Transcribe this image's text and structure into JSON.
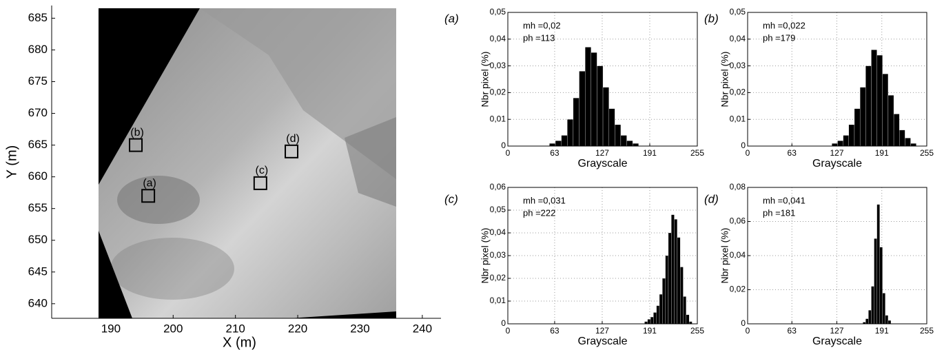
{
  "chart_data": [
    {
      "type": "image-map",
      "xlabel": "X (m)",
      "ylabel": "Y (m)",
      "xlim": [
        180.5,
        243
      ],
      "xticks": [
        190,
        200,
        210,
        220,
        230,
        240
      ],
      "ylim": [
        637.7,
        687
      ],
      "yticks": [
        640,
        645,
        650,
        655,
        660,
        665,
        670,
        675,
        680,
        685
      ],
      "markers": [
        {
          "label": "(a)",
          "x": 196,
          "y": 657
        },
        {
          "label": "(b)",
          "x": 194,
          "y": 665
        },
        {
          "label": "(c)",
          "x": 214,
          "y": 659
        },
        {
          "label": "(d)",
          "x": 219,
          "y": 664
        }
      ]
    },
    {
      "type": "histogram",
      "label": "(a)",
      "xlabel": "Grayscale",
      "ylabel": "Nbr pixel (%)",
      "annotations": [
        "mh =0,02",
        "ph =113"
      ],
      "color": "#000000",
      "grid": true,
      "xlim": [
        0,
        255
      ],
      "xticks": [
        0,
        63,
        127,
        191,
        255
      ],
      "ylim": [
        0,
        0.05
      ],
      "yticks": [
        0,
        {
          "value": 0.01,
          "label": "0,01"
        },
        {
          "value": 0.02,
          "label": "0,02"
        },
        {
          "value": 0.03,
          "label": "0,03"
        },
        {
          "value": 0.04,
          "label": "0,04"
        },
        {
          "value": 0.05,
          "label": "0,05"
        }
      ],
      "bins": [
        56,
        64,
        72,
        80,
        88,
        96,
        104,
        112,
        120,
        128,
        136,
        144,
        152,
        160,
        168,
        176
      ],
      "values": [
        0.001,
        0.002,
        0.004,
        0.01,
        0.018,
        0.028,
        0.037,
        0.035,
        0.03,
        0.022,
        0.014,
        0.008,
        0.004,
        0.002,
        0.001
      ]
    },
    {
      "type": "histogram",
      "label": "(b)",
      "xlabel": "Grayscale",
      "ylabel": "Nbr pixel (%)",
      "annotations": [
        "mh =0,022",
        "ph =179"
      ],
      "color": "#000000",
      "grid": true,
      "xlim": [
        0,
        255
      ],
      "xticks": [
        0,
        63,
        127,
        191,
        255
      ],
      "ylim": [
        0,
        0.05
      ],
      "yticks": [
        0,
        {
          "value": 0.01,
          "label": "0,01"
        },
        {
          "value": 0.02,
          "label": "0,02"
        },
        {
          "value": 0.03,
          "label": "0,03"
        },
        {
          "value": 0.04,
          "label": "0,04"
        },
        {
          "value": 0.05,
          "label": "0,05"
        }
      ],
      "bins": [
        120,
        128,
        136,
        144,
        152,
        160,
        168,
        176,
        184,
        192,
        200,
        208,
        216,
        224,
        232,
        240
      ],
      "values": [
        0.001,
        0.002,
        0.004,
        0.008,
        0.014,
        0.022,
        0.03,
        0.036,
        0.034,
        0.027,
        0.019,
        0.012,
        0.006,
        0.003,
        0.001
      ]
    },
    {
      "type": "histogram",
      "label": "(c)",
      "xlabel": "Grayscale",
      "ylabel": "Nbr pixel (%)",
      "annotations": [
        "mh =0,031",
        "ph =222"
      ],
      "color": "#000000",
      "grid": true,
      "xlim": [
        0,
        255
      ],
      "xticks": [
        0,
        63,
        127,
        191,
        255
      ],
      "ylim": [
        0,
        0.06
      ],
      "yticks": [
        0,
        {
          "value": 0.01,
          "label": "0,01"
        },
        {
          "value": 0.02,
          "label": "0,02"
        },
        {
          "value": 0.03,
          "label": "0,03"
        },
        {
          "value": 0.04,
          "label": "0,04"
        },
        {
          "value": 0.05,
          "label": "0,05"
        },
        {
          "value": 0.06,
          "label": "0,06"
        }
      ],
      "bins": [
        184,
        188,
        192,
        196,
        200,
        204,
        208,
        212,
        216,
        220,
        224,
        228,
        232,
        236,
        240,
        244,
        248
      ],
      "values": [
        0.001,
        0.002,
        0.003,
        0.005,
        0.008,
        0.013,
        0.02,
        0.03,
        0.04,
        0.048,
        0.046,
        0.038,
        0.025,
        0.012,
        0.004,
        0.001
      ]
    },
    {
      "type": "histogram",
      "label": "(d)",
      "xlabel": "Grayscale",
      "ylabel": "Nbr pixel (%)",
      "annotations": [
        "mh =0,041",
        "ph =181"
      ],
      "color": "#000000",
      "grid": true,
      "xlim": [
        0,
        255
      ],
      "xticks": [
        0,
        63,
        127,
        191,
        255
      ],
      "ylim": [
        0,
        0.08
      ],
      "yticks": [
        0,
        {
          "value": 0.02,
          "label": "0,02"
        },
        {
          "value": 0.04,
          "label": "0,04"
        },
        {
          "value": 0.06,
          "label": "0,06"
        },
        {
          "value": 0.08,
          "label": "0,08"
        }
      ],
      "bins": [
        164,
        168,
        172,
        176,
        180,
        184,
        188,
        192,
        196,
        200,
        204
      ],
      "values": [
        0.001,
        0.003,
        0.008,
        0.022,
        0.05,
        0.07,
        0.045,
        0.018,
        0.005,
        0.002
      ]
    }
  ]
}
